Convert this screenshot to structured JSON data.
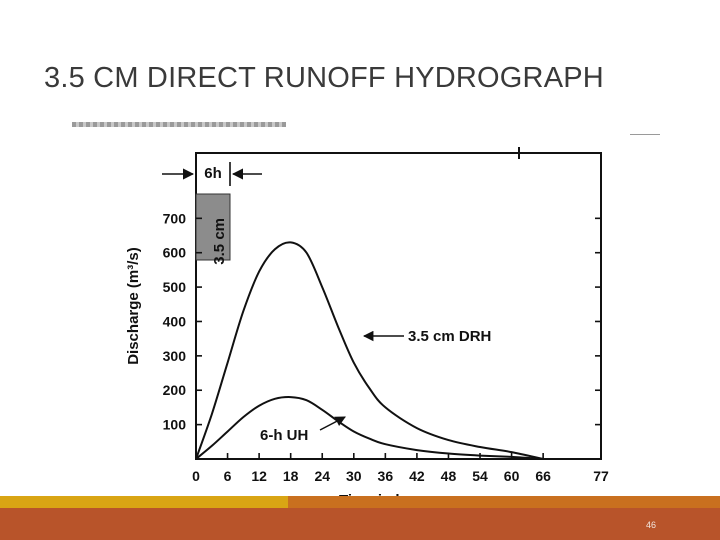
{
  "slide": {
    "title": "3.5 CM DIRECT RUNOFF HYDROGRAPH",
    "page_number": "46"
  },
  "chart_data": {
    "type": "line",
    "title": "",
    "xlabel": "Time in hours",
    "ylabel": "Discharge (m³/s)",
    "x_ticks": [
      0,
      6,
      12,
      18,
      24,
      30,
      36,
      42,
      48,
      54,
      60,
      66,
      77
    ],
    "y_ticks": [
      100,
      200,
      300,
      400,
      500,
      600,
      700
    ],
    "xlim": [
      0,
      77
    ],
    "ylim": [
      0,
      890
    ],
    "grid": false,
    "series": [
      {
        "name": "3.5 cm DRH",
        "x": [
          0,
          3,
          6,
          9,
          12,
          15,
          18,
          21,
          24,
          27,
          30,
          33,
          36,
          42,
          48,
          54,
          60,
          66
        ],
        "y": [
          0,
          130,
          280,
          430,
          545,
          610,
          630,
          600,
          500,
          385,
          280,
          205,
          150,
          90,
          55,
          35,
          20,
          0
        ]
      },
      {
        "name": "6-h UH",
        "x": [
          0,
          3,
          6,
          9,
          12,
          15,
          18,
          21,
          24,
          27,
          30,
          33,
          36,
          42,
          48,
          54,
          60,
          66
        ],
        "y": [
          0,
          38,
          80,
          122,
          155,
          175,
          180,
          171,
          143,
          110,
          80,
          59,
          43,
          26,
          16,
          10,
          6,
          0
        ]
      }
    ],
    "annotations": {
      "rainfall_duration": "6h",
      "rainfall_depth": "3.5 cm"
    }
  }
}
